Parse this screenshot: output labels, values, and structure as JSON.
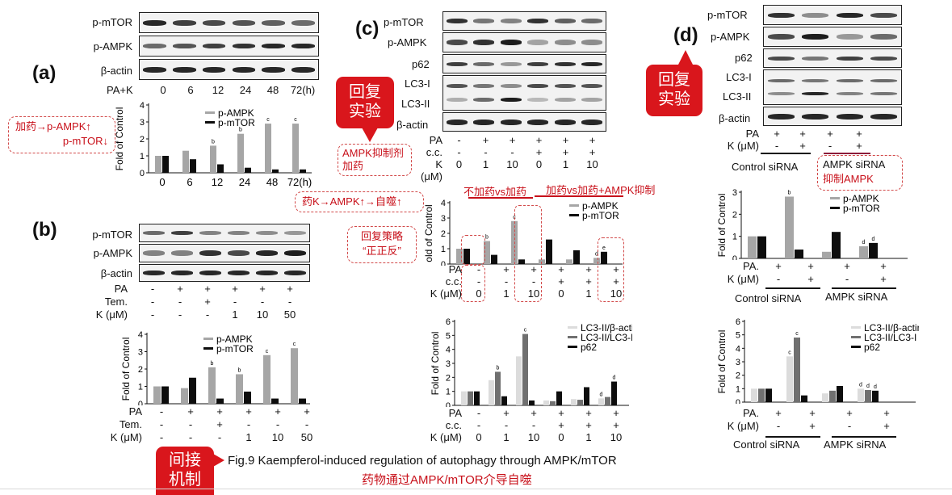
{
  "panels": {
    "a": {
      "letter": "(a)",
      "bands": [
        "p-mTOR",
        "p-AMPK",
        "β-actin"
      ],
      "lane_title": "PA+K",
      "lanes": [
        "0",
        "6",
        "12",
        "24",
        "48",
        "72(h)"
      ],
      "chart_ylabel": "Fold of Control",
      "chart_legend": [
        "p-AMPK",
        "p-mTOR"
      ],
      "x_labels": [
        "0",
        "6",
        "12",
        "24",
        "48",
        "72(h)"
      ]
    },
    "b": {
      "letter": "(b)",
      "bands": [
        "p-mTOR",
        "p-AMPK",
        "β-actin"
      ],
      "rows": [
        {
          "label": "PA",
          "values": [
            "-",
            "+",
            "+",
            "+",
            "+",
            "+"
          ]
        },
        {
          "label": "Tem.",
          "values": [
            "-",
            "-",
            "+",
            "-",
            "-",
            "-"
          ]
        },
        {
          "label": "K (μM)",
          "values": [
            "-",
            "-",
            "-",
            "1",
            "10",
            "50"
          ]
        }
      ],
      "chart_ylabel": "Fold of Control",
      "chart_legend": [
        "p-AMPK",
        "p-mTOR"
      ],
      "chart_rows": [
        {
          "label": "PA",
          "values": [
            "-",
            "+",
            "+",
            "+",
            "+",
            "+"
          ]
        },
        {
          "label": "Tem.",
          "values": [
            "-",
            "-",
            "+",
            "-",
            "-",
            "-"
          ]
        },
        {
          "label": "K (μM)",
          "values": [
            "-",
            "-",
            "-",
            "1",
            "10",
            "50"
          ]
        }
      ]
    },
    "c": {
      "letter": "(c)",
      "bands": [
        "p-mTOR",
        "p-AMPK",
        "p62",
        "LC3-I",
        "LC3-II",
        "β-actin"
      ],
      "rows": [
        {
          "label": "PA",
          "values": [
            "-",
            "+",
            "+",
            "+",
            "+",
            "+"
          ]
        },
        {
          "label": "c.c.",
          "values": [
            "-",
            "-",
            "-",
            "+",
            "+",
            "+"
          ]
        },
        {
          "label": "K (μM)",
          "values": [
            "0",
            "1",
            "10",
            "0",
            "1",
            "10"
          ]
        }
      ],
      "note_left_line1": "AMPK抑制剂",
      "note_left_line2": "加药",
      "chart1_ylabel": "old of Control",
      "chart1_legend": [
        "p-AMPK",
        "p-mTOR"
      ],
      "chart2_ylabel": "Fold of Control",
      "chart2_legend": [
        "LC3-II/β-actin",
        "LC3-II/LC3-I",
        "p62"
      ],
      "chart_rows": [
        {
          "label": "PA",
          "values": [
            "-",
            "+",
            "+",
            "+",
            "+",
            "+"
          ]
        },
        {
          "label": "c.c.",
          "values": [
            "-",
            "-",
            "-",
            "+",
            "+",
            "+"
          ]
        },
        {
          "label": "K (μM)",
          "values": [
            "0",
            "1",
            "10",
            "0",
            "1",
            "10"
          ]
        }
      ],
      "header_left": "不加药vs加药",
      "header_right": "加药vs加药+AMPK抑制"
    },
    "d": {
      "letter": "(d)",
      "bands": [
        "p-mTOR",
        "p-AMPK",
        "p62",
        "LC3-I",
        "LC3-II",
        "β-actin"
      ],
      "rows": [
        {
          "label": "PA",
          "values": [
            "+",
            "+",
            "+",
            "+"
          ]
        },
        {
          "label": "K (μM)",
          "values": [
            "-",
            "+",
            "-",
            "+"
          ]
        }
      ],
      "group_left": "Control siRNA",
      "group_right": "AMPK siRNA",
      "note_group_right": "抑制AMPK",
      "chart1_ylabel": "Fold of Control",
      "chart1_legend": [
        "p-AMPK",
        "p-mTOR"
      ],
      "chart1_rows": [
        {
          "label": "PA.",
          "values": [
            "+",
            "+",
            "+",
            "+"
          ]
        },
        {
          "label": "K (μM)",
          "values": [
            "-",
            "+",
            "-",
            "+"
          ]
        }
      ],
      "chart2_ylabel": "Fold of Control",
      "chart2_legend": [
        "LC3-II/β-actin",
        "LC3-II/LC3-I",
        "p62"
      ],
      "chart2_rows": [
        {
          "label": "PA.",
          "values": [
            "+",
            "+",
            "+",
            "+"
          ]
        },
        {
          "label": "K (μM)",
          "values": [
            "-",
            "+",
            "-",
            "+"
          ]
        }
      ]
    }
  },
  "annotations": {
    "note_a_line1": "加药→p-AMPK↑",
    "note_a_line2": "p-mTOR↓",
    "note_c_mech": "药K→AMPK↑→自噬↑",
    "note_strategy_line1": "回复策略",
    "note_strategy_line2": "“正正反”",
    "bubble_c_line1": "回复",
    "bubble_c_line2": "实验",
    "bubble_d_line1": "回复",
    "bubble_d_line2": "实验",
    "bubble_bottom_line1": "间接",
    "bubble_bottom_line2": "机制"
  },
  "caption": {
    "en": "Fig.9 Kaempferol-induced regulation of autophagy through AMPK/mTOR",
    "cn": "药物通过AMPK/mTOR介导自噬"
  },
  "colors": {
    "gray_bar": "#a6a6a6",
    "black_bar": "#0d0d0d",
    "light_bar": "#dcdcdc",
    "dark_gray_bar": "#707070",
    "accent_red": "#d9161c"
  },
  "chart_data": [
    {
      "id": "a",
      "type": "bar",
      "categories": [
        "0",
        "6",
        "12",
        "24",
        "48",
        "72(h)"
      ],
      "ylim": [
        0,
        4
      ],
      "yticks": [
        "0",
        "1",
        "2",
        "3",
        "4"
      ],
      "series": [
        {
          "name": "p-AMPK",
          "color": "#a6a6a6",
          "values": [
            1.0,
            1.3,
            1.6,
            2.3,
            2.9,
            2.9
          ],
          "letters": [
            "",
            "",
            "b",
            "b",
            "c",
            "c"
          ]
        },
        {
          "name": "p-mTOR",
          "color": "#0d0d0d",
          "values": [
            1.0,
            0.8,
            0.5,
            0.3,
            0.2,
            0.2
          ],
          "letters": [
            "",
            "",
            "",
            "",
            "",
            ""
          ]
        }
      ]
    },
    {
      "id": "b",
      "type": "bar",
      "categories": [
        "1",
        "2",
        "3",
        "4",
        "5",
        "6"
      ],
      "ylim": [
        0,
        4
      ],
      "yticks": [
        "0",
        "1",
        "2",
        "3",
        "4"
      ],
      "series": [
        {
          "name": "p-AMPK",
          "color": "#a6a6a6",
          "values": [
            1.0,
            0.9,
            2.1,
            1.7,
            2.8,
            3.2
          ],
          "letters": [
            "",
            "",
            "b",
            "b",
            "c",
            "c"
          ]
        },
        {
          "name": "p-mTOR",
          "color": "#0d0d0d",
          "values": [
            1.0,
            1.5,
            0.3,
            0.7,
            0.3,
            0.3
          ],
          "letters": [
            "",
            "",
            "",
            "",
            "",
            ""
          ]
        }
      ]
    },
    {
      "id": "c1",
      "type": "bar",
      "categories": [
        "1",
        "2",
        "3",
        "4",
        "5",
        "6"
      ],
      "ylim": [
        0,
        4
      ],
      "yticks": [
        "0",
        "1",
        "2",
        "3",
        "4"
      ],
      "series": [
        {
          "name": "p-AMPK",
          "color": "#a6a6a6",
          "values": [
            1.0,
            1.5,
            2.8,
            0.3,
            0.3,
            0.4
          ],
          "letters": [
            "",
            "b",
            "c",
            "",
            "",
            "d"
          ]
        },
        {
          "name": "p-mTOR",
          "color": "#0d0d0d",
          "values": [
            1.0,
            0.6,
            0.3,
            1.6,
            0.9,
            0.8
          ],
          "letters": [
            "",
            "",
            "",
            "",
            "",
            "e"
          ]
        }
      ]
    },
    {
      "id": "c2",
      "type": "bar",
      "categories": [
        "1",
        "2",
        "3",
        "4",
        "5",
        "6"
      ],
      "ylim": [
        0,
        6
      ],
      "yticks": [
        "0",
        "1",
        "2",
        "3",
        "4",
        "5",
        "6"
      ],
      "series": [
        {
          "name": "LC3-II/β-actin",
          "color": "#dcdcdc",
          "values": [
            1.0,
            1.8,
            3.5,
            0.35,
            0.45,
            0.5
          ],
          "letters": [
            "",
            "",
            "",
            "",
            "",
            "d"
          ]
        },
        {
          "name": "LC3-II/LC3-I",
          "color": "#707070",
          "values": [
            1.0,
            2.4,
            5.1,
            0.3,
            0.4,
            0.6
          ],
          "letters": [
            "",
            "b",
            "c",
            "",
            "",
            ""
          ]
        },
        {
          "name": "p62",
          "color": "#0d0d0d",
          "values": [
            1.0,
            0.65,
            0.35,
            1.0,
            1.3,
            1.7
          ],
          "letters": [
            "",
            "",
            "",
            "",
            "",
            "d"
          ]
        }
      ]
    },
    {
      "id": "d1",
      "type": "bar",
      "categories": [
        "1",
        "2",
        "3",
        "4"
      ],
      "ylim": [
        0,
        3
      ],
      "yticks": [
        "0",
        "1",
        "2",
        "3"
      ],
      "series": [
        {
          "name": "p-AMPK",
          "color": "#a6a6a6",
          "values": [
            1.0,
            2.8,
            0.3,
            0.55
          ],
          "letters": [
            "",
            "b",
            "",
            "d"
          ]
        },
        {
          "name": "p-mTOR",
          "color": "#0d0d0d",
          "values": [
            1.0,
            0.4,
            1.2,
            0.7
          ],
          "letters": [
            "",
            "",
            "",
            "d"
          ]
        }
      ]
    },
    {
      "id": "d2",
      "type": "bar",
      "categories": [
        "1",
        "2",
        "3",
        "4"
      ],
      "ylim": [
        0,
        6
      ],
      "yticks": [
        "0",
        "1",
        "2",
        "3",
        "4",
        "5",
        "6"
      ],
      "series": [
        {
          "name": "LC3-II/β-actin",
          "color": "#dcdcdc",
          "values": [
            1.0,
            3.4,
            0.65,
            1.0
          ],
          "letters": [
            "",
            "c",
            "",
            "d"
          ]
        },
        {
          "name": "LC3-II/LC3-I",
          "color": "#707070",
          "values": [
            1.0,
            4.8,
            0.85,
            0.9
          ],
          "letters": [
            "",
            "c",
            "",
            "d"
          ]
        },
        {
          "name": "p62",
          "color": "#0d0d0d",
          "values": [
            1.0,
            0.5,
            1.2,
            0.85
          ],
          "letters": [
            "",
            "",
            "",
            "d"
          ]
        }
      ]
    }
  ]
}
